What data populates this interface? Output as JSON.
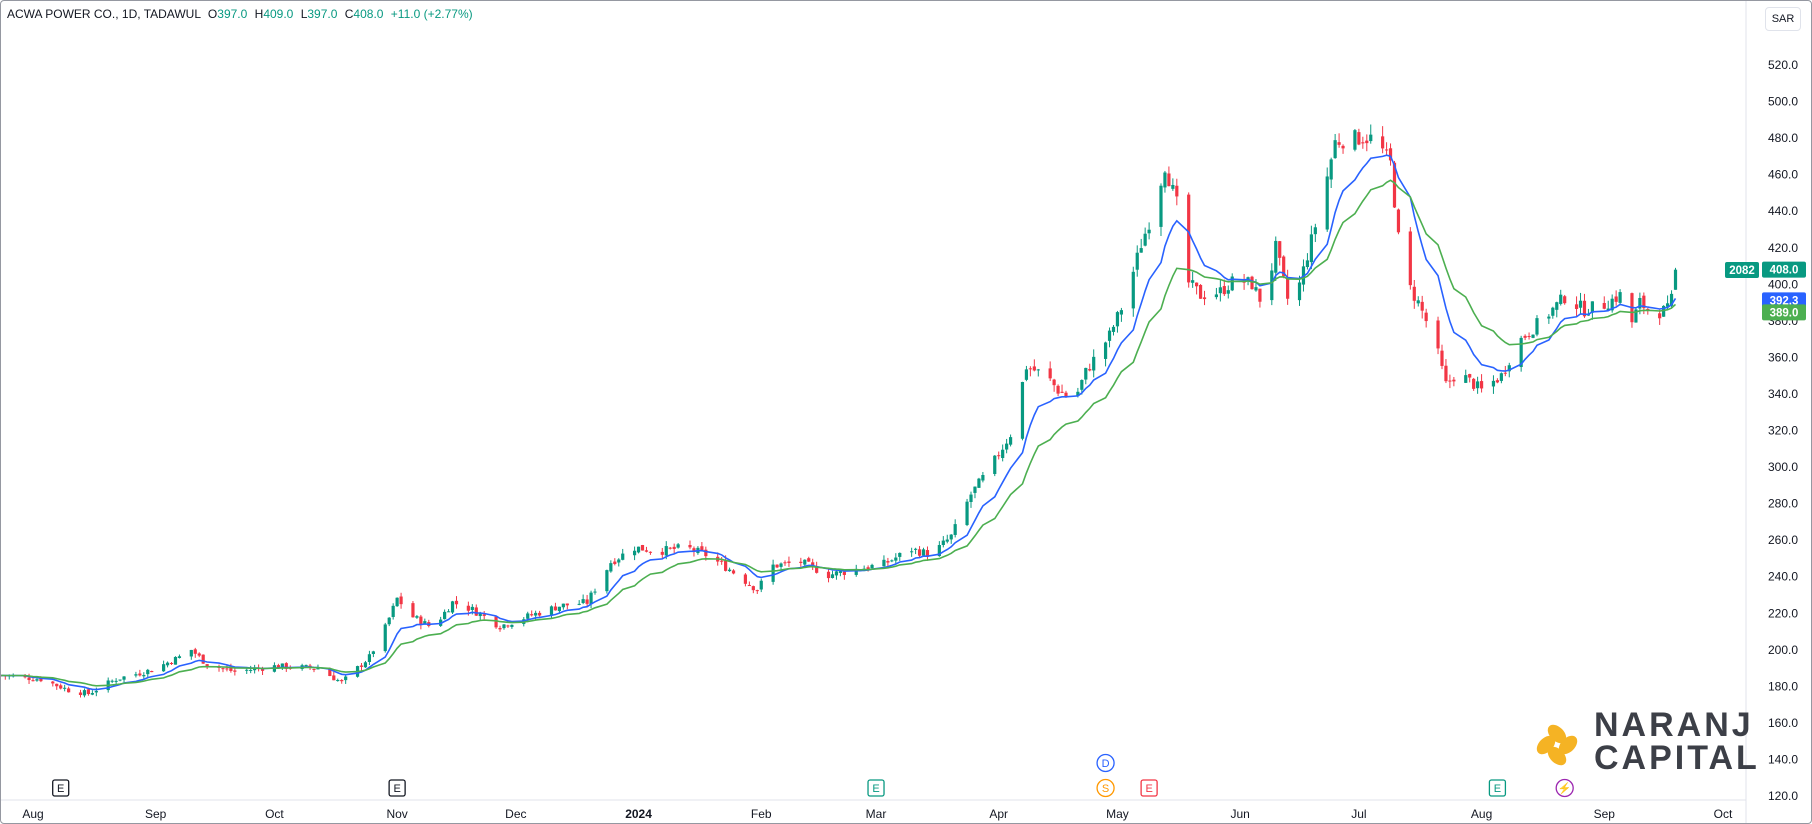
{
  "header": {
    "symbol": "ACWA POWER CO., 1D, TADAWUL",
    "o_label": "O",
    "o": "397.0",
    "h_label": "H",
    "h": "409.0",
    "l_label": "L",
    "l": "397.0",
    "c_label": "C",
    "c": "408.0",
    "change": "+11.0 (+2.77%)"
  },
  "currency": "SAR",
  "colors": {
    "up": "#089981",
    "down": "#f23645",
    "ema_fast": "#2962ff",
    "ema_slow": "#4caf50",
    "grid": "#f0f3fa"
  },
  "price_labels": {
    "volume": "2082",
    "last": "408.0",
    "ema_fast": "392.3",
    "ema_slow": "389.0"
  },
  "events": [
    {
      "label": "E",
      "date": "2023-08-08",
      "kind": "earnings-past"
    },
    {
      "label": "E",
      "date": "2023-11-01",
      "kind": "earnings-past"
    },
    {
      "label": "E",
      "date": "2024-03-01",
      "kind": "earnings"
    },
    {
      "label": "D",
      "date": "2024-04-28",
      "kind": "dividend"
    },
    {
      "label": "S",
      "date": "2024-04-28",
      "kind": "split"
    },
    {
      "label": "E",
      "date": "2024-05-09",
      "kind": "earnings-upcoming"
    },
    {
      "label": "E",
      "date": "2024-08-05",
      "kind": "earnings"
    },
    {
      "label": "⚡",
      "date": "2024-08-22",
      "kind": "news"
    }
  ],
  "watermark": {
    "line1": "NARANJ",
    "line2": "CAPITAL"
  },
  "chart_data": {
    "type": "candlestick",
    "title": "ACWA POWER CO., 1D, TADAWUL",
    "x_axis": {
      "labels": [
        "Aug",
        "Sep",
        "Oct",
        "Nov",
        "Dec",
        "2024",
        "Feb",
        "Mar",
        "Apr",
        "May",
        "Jun",
        "Jul",
        "Aug",
        "Sep",
        "Oct"
      ],
      "label_dates": [
        "2023-08-01",
        "2023-09-01",
        "2023-10-01",
        "2023-11-01",
        "2023-12-01",
        "2024-01-01",
        "2024-02-01",
        "2024-03-01",
        "2024-04-01",
        "2024-05-01",
        "2024-06-01",
        "2024-07-01",
        "2024-08-01",
        "2024-09-01",
        "2024-10-01"
      ]
    },
    "y_axis": {
      "ticks": [
        "120.0",
        "140.0",
        "160.0",
        "180.0",
        "200.0",
        "220.0",
        "240.0",
        "260.0",
        "280.0",
        "300.0",
        "320.0",
        "340.0",
        "360.0",
        "380.0",
        "400.0",
        "420.0",
        "440.0",
        "460.0",
        "480.0",
        "500.0",
        "520.0"
      ],
      "range": [
        116,
        540
      ]
    },
    "grid": false,
    "series": [
      {
        "kind": "close",
        "anchors": [
          [
            "2023-07-24",
            186
          ],
          [
            "2023-08-03",
            184
          ],
          [
            "2023-08-10",
            178
          ],
          [
            "2023-08-15",
            176
          ],
          [
            "2023-08-22",
            184
          ],
          [
            "2023-08-31",
            189
          ],
          [
            "2023-09-07",
            196
          ],
          [
            "2023-09-10",
            200
          ],
          [
            "2023-09-14",
            192
          ],
          [
            "2023-09-21",
            188
          ],
          [
            "2023-10-01",
            191
          ],
          [
            "2023-10-12",
            190
          ],
          [
            "2023-10-18",
            182
          ],
          [
            "2023-10-25",
            196
          ],
          [
            "2023-10-29",
            212
          ],
          [
            "2023-11-01",
            228
          ],
          [
            "2023-11-05",
            218
          ],
          [
            "2023-11-10",
            212
          ],
          [
            "2023-11-15",
            226
          ],
          [
            "2023-11-20",
            222
          ],
          [
            "2023-11-27",
            213
          ],
          [
            "2023-12-05",
            219
          ],
          [
            "2023-12-12",
            224
          ],
          [
            "2023-12-19",
            226
          ],
          [
            "2023-12-25",
            248
          ],
          [
            "2023-12-31",
            256
          ],
          [
            "2024-01-06",
            254
          ],
          [
            "2024-01-13",
            256
          ],
          [
            "2024-01-18",
            252
          ],
          [
            "2024-01-24",
            244
          ],
          [
            "2024-01-31",
            233
          ],
          [
            "2024-02-04",
            246
          ],
          [
            "2024-02-11",
            248
          ],
          [
            "2024-02-18",
            241
          ],
          [
            "2024-02-25",
            244
          ],
          [
            "2024-03-03",
            247
          ],
          [
            "2024-03-10",
            255
          ],
          [
            "2024-03-15",
            252
          ],
          [
            "2024-03-20",
            262
          ],
          [
            "2024-03-25",
            285
          ],
          [
            "2024-03-30",
            300
          ],
          [
            "2024-04-04",
            318
          ],
          [
            "2024-04-08",
            355
          ],
          [
            "2024-04-13",
            350
          ],
          [
            "2024-04-16",
            342
          ],
          [
            "2024-04-20",
            336
          ],
          [
            "2024-04-23",
            352
          ],
          [
            "2024-04-29",
            372
          ],
          [
            "2024-05-03",
            392
          ],
          [
            "2024-05-07",
            422
          ],
          [
            "2024-05-10",
            440
          ],
          [
            "2024-05-13",
            465
          ],
          [
            "2024-05-16",
            444
          ],
          [
            "2024-05-18",
            403
          ],
          [
            "2024-05-22",
            394
          ],
          [
            "2024-05-27",
            396
          ],
          [
            "2024-05-31",
            403
          ],
          [
            "2024-06-04",
            400
          ],
          [
            "2024-06-07",
            388
          ],
          [
            "2024-06-10",
            420
          ],
          [
            "2024-06-13",
            392
          ],
          [
            "2024-06-16",
            400
          ],
          [
            "2024-06-21",
            440
          ],
          [
            "2024-06-25",
            478
          ],
          [
            "2024-06-30",
            480
          ],
          [
            "2024-07-05",
            480
          ],
          [
            "2024-07-09",
            466
          ],
          [
            "2024-07-12",
            405
          ],
          [
            "2024-07-16",
            390
          ],
          [
            "2024-07-20",
            370
          ],
          [
            "2024-07-23",
            345
          ],
          [
            "2024-07-26",
            352
          ],
          [
            "2024-08-01",
            342
          ],
          [
            "2024-08-06",
            350
          ],
          [
            "2024-08-10",
            368
          ],
          [
            "2024-08-14",
            376
          ],
          [
            "2024-08-17",
            382
          ],
          [
            "2024-08-22",
            393
          ],
          [
            "2024-08-27",
            386
          ],
          [
            "2024-09-01",
            389
          ],
          [
            "2024-09-05",
            394
          ],
          [
            "2024-09-07",
            374
          ],
          [
            "2024-09-10",
            390
          ],
          [
            "2024-09-13",
            384
          ],
          [
            "2024-09-17",
            386
          ],
          [
            "2024-09-19",
            397
          ],
          [
            "2024-09-21",
            408
          ]
        ]
      },
      {
        "name": "",
        "kind": "ema_fast",
        "color": "#2962ff",
        "last": 392.3
      },
      {
        "name": "",
        "kind": "ema_slow",
        "color": "#4caf50",
        "last": 389.0
      }
    ],
    "last_bar": {
      "open": 397.0,
      "high": 409.0,
      "low": 397.0,
      "close": 408.0
    }
  }
}
